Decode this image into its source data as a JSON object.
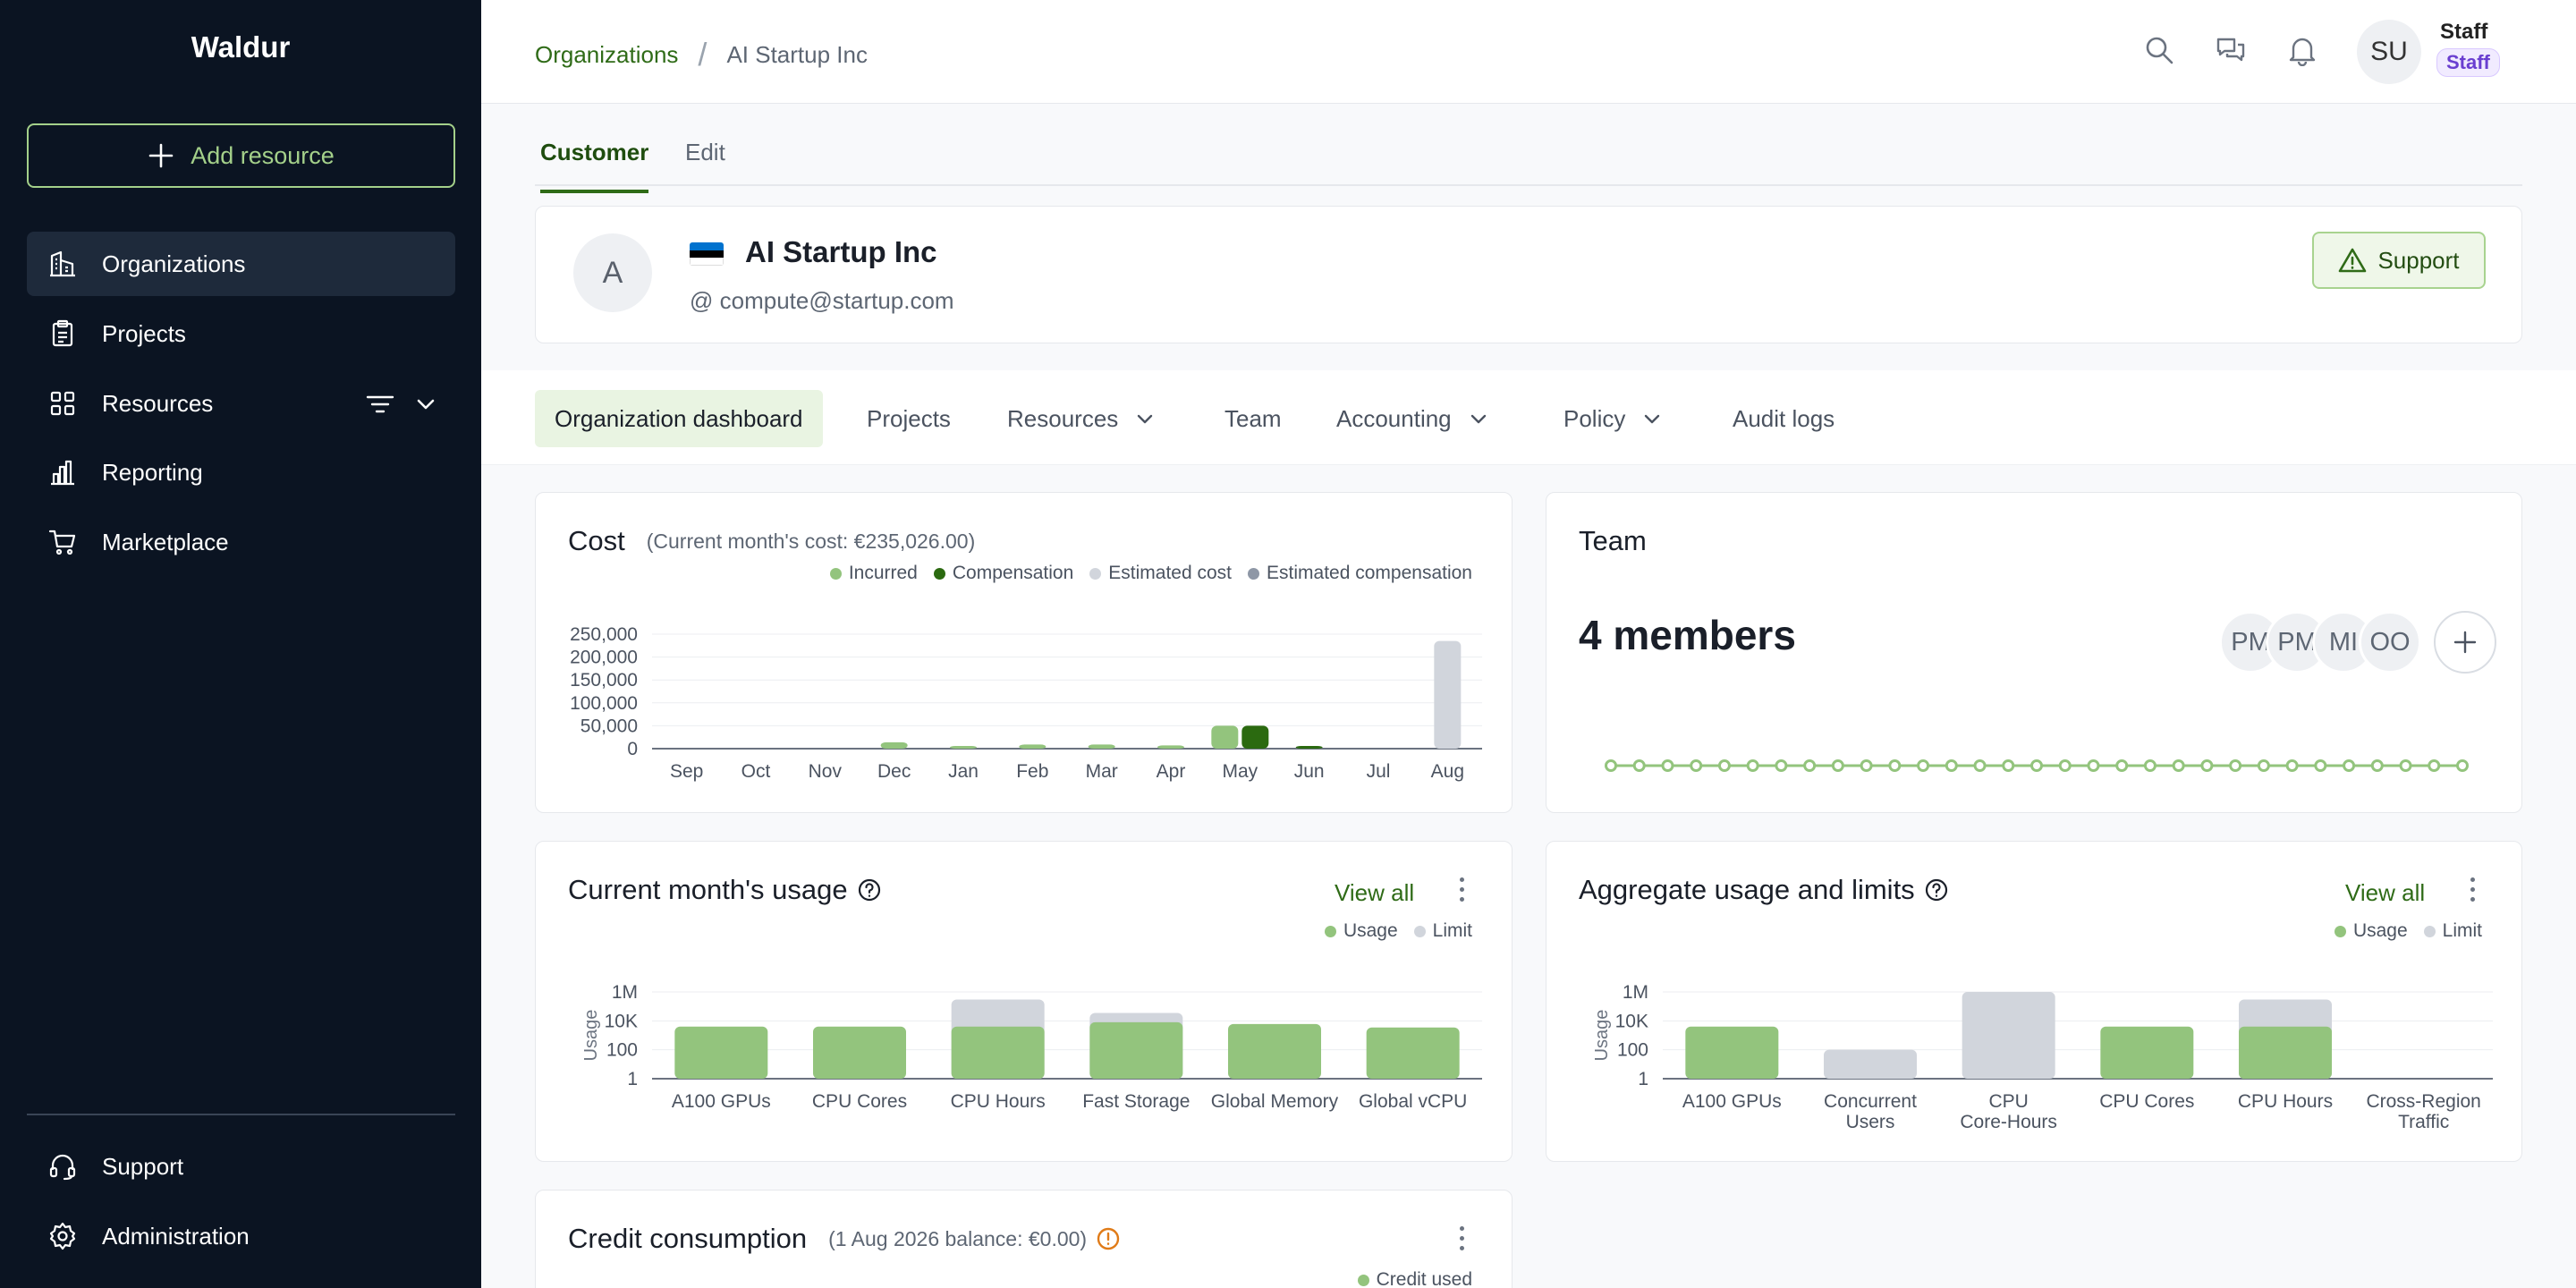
{
  "sidebar": {
    "brand": "Waldur",
    "add_resource": "Add resource",
    "items": [
      {
        "label": "Organizations",
        "icon": "building-icon"
      },
      {
        "label": "Projects",
        "icon": "clipboard-icon"
      },
      {
        "label": "Resources",
        "icon": "grid-icon"
      },
      {
        "label": "Reporting",
        "icon": "bar-chart-icon"
      },
      {
        "label": "Marketplace",
        "icon": "cart-icon"
      }
    ],
    "bottom": [
      {
        "label": "Support",
        "icon": "headset-icon"
      },
      {
        "label": "Administration",
        "icon": "gear-icon"
      }
    ]
  },
  "topbar": {
    "breadcrumb": {
      "parent": "Organizations",
      "current": "AI Startup Inc"
    },
    "user": {
      "initials": "SU",
      "name": "Staff",
      "role": "Staff"
    }
  },
  "tabs": {
    "customer": "Customer",
    "edit": "Edit"
  },
  "customer": {
    "initial": "A",
    "name": "AI Startup Inc",
    "email_prefix": "@",
    "email": "compute@startup.com",
    "support": "Support"
  },
  "subnav": {
    "dashboard": "Organization dashboard",
    "projects": "Projects",
    "resources": "Resources",
    "team": "Team",
    "accounting": "Accounting",
    "policy": "Policy",
    "audit": "Audit logs"
  },
  "cost": {
    "title": "Cost",
    "subtitle": "(Current month's cost: €235,026.00)",
    "legend": [
      "Incurred",
      "Compensation",
      "Estimated cost",
      "Estimated compensation"
    ]
  },
  "team": {
    "title": "Team",
    "members": "4 members",
    "avatars": [
      "PM",
      "PM",
      "MI",
      "OO"
    ]
  },
  "usage": {
    "title": "Current month's usage",
    "view_all": "View all",
    "legend": [
      "Usage",
      "Limit"
    ]
  },
  "aggregate": {
    "title": "Aggregate usage and limits",
    "view_all": "View all",
    "legend": [
      "Usage",
      "Limit"
    ]
  },
  "credit": {
    "title": "Credit consumption",
    "subtitle": "(1 Aug 2026 balance: €0.00)",
    "legend": [
      "Credit used"
    ]
  },
  "colors": {
    "incurred": "#93c47d",
    "compensation": "#2b6a10",
    "estimated": "#d1d5dc",
    "estimated_comp": "#8e97a6",
    "limit": "#d1d5dc",
    "accent": "#2f6b17",
    "warning": "#e07b18"
  },
  "chart_data": [
    {
      "type": "bar",
      "title": "Cost",
      "categories": [
        "Sep",
        "Oct",
        "Nov",
        "Dec",
        "Jan",
        "Feb",
        "Mar",
        "Apr",
        "May",
        "Jun",
        "Jul",
        "Aug"
      ],
      "series": [
        {
          "name": "Incurred",
          "values": [
            0,
            0,
            0,
            14000,
            4000,
            9000,
            9000,
            7000,
            50000,
            0,
            0,
            0
          ]
        },
        {
          "name": "Compensation",
          "values": [
            0,
            0,
            0,
            0,
            0,
            0,
            0,
            0,
            50000,
            3000,
            0,
            0
          ]
        },
        {
          "name": "Estimated cost",
          "values": [
            0,
            0,
            0,
            0,
            0,
            0,
            0,
            0,
            0,
            0,
            0,
            235026
          ]
        },
        {
          "name": "Estimated compensation",
          "values": [
            0,
            0,
            0,
            0,
            0,
            0,
            0,
            0,
            0,
            0,
            0,
            0
          ]
        }
      ],
      "yticks": [
        "250,000",
        "200,000",
        "150,000",
        "100,000",
        "50,000",
        "0"
      ],
      "ylim": [
        0,
        250000
      ],
      "legend_position": "top-right"
    },
    {
      "type": "line",
      "title": "Team",
      "values": [
        4,
        4,
        4,
        4,
        4,
        4,
        4,
        4,
        4,
        4,
        4,
        4,
        4,
        4,
        4,
        4,
        4,
        4,
        4,
        4,
        4,
        4,
        4,
        4,
        4,
        4,
        4,
        4,
        4,
        4,
        4
      ]
    },
    {
      "type": "bar",
      "title": "Current month's usage",
      "categories": [
        "A100 GPUs",
        "CPU Cores",
        "CPU Hours",
        "Fast Storage",
        "Global Memory",
        "Global vCPU"
      ],
      "series": [
        {
          "name": "Usage",
          "values": [
            4000,
            4000,
            4000,
            8000,
            6000,
            3500
          ]
        },
        {
          "name": "Limit",
          "values": [
            0,
            0,
            300000,
            35000,
            0,
            0
          ]
        }
      ],
      "ylabel": "Usage",
      "yticks": [
        "1M",
        "10K",
        "100",
        "1"
      ],
      "scale": "log",
      "legend_position": "top-right"
    },
    {
      "type": "bar",
      "title": "Aggregate usage and limits",
      "categories": [
        "A100 GPUs",
        "Concurrent Users",
        "CPU Core-Hours",
        "CPU Cores",
        "CPU Hours",
        "Cross-Region Traffic"
      ],
      "series": [
        {
          "name": "Usage",
          "values": [
            4000,
            0,
            0,
            4000,
            4000,
            0
          ]
        },
        {
          "name": "Limit",
          "values": [
            0,
            100,
            1000000,
            0,
            300000,
            0
          ]
        }
      ],
      "ylabel": "Usage",
      "yticks": [
        "1M",
        "10K",
        "100",
        "1"
      ],
      "scale": "log",
      "legend_position": "top-right"
    }
  ]
}
